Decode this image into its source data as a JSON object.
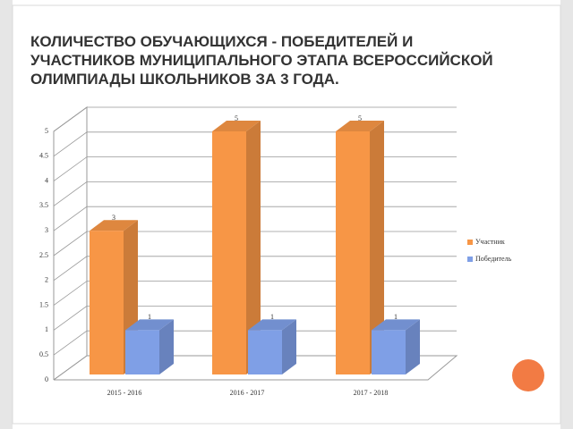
{
  "title": "КОЛИЧЕСТВО ОБУЧАЮЩИХСЯ  - ПОБЕДИТЕЛЕЙ И УЧАСТНИКОВ МУНИЦИПАЛЬНОГО ЭТАПА ВСЕРОССИЙСКОЙ ОЛИМПИАДЫ ШКОЛЬНИКОВ ЗА 3 ГОДА.",
  "chart_data": {
    "type": "bar3d",
    "categories": [
      "2015 - 2016",
      "2016 - 2017",
      "2017 - 2018"
    ],
    "series": [
      {
        "name": "Участник",
        "color": "#f79646",
        "values": [
          3,
          5,
          5
        ]
      },
      {
        "name": "Победитель",
        "color": "#7f9fe6",
        "values": [
          1,
          1,
          1
        ]
      }
    ],
    "ylim": [
      0,
      5
    ],
    "yticks": [
      0,
      0.5,
      1,
      1.5,
      2,
      2.5,
      3,
      3.5,
      4,
      4.5,
      5
    ],
    "grid": true,
    "legend": "right"
  }
}
